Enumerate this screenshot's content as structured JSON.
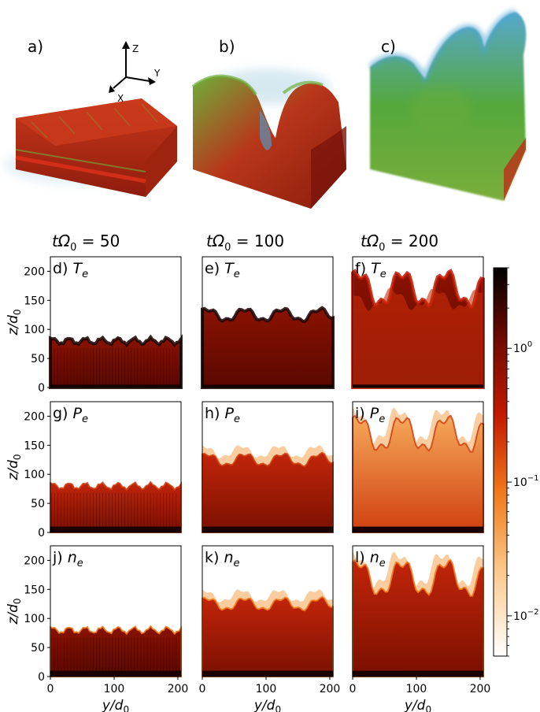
{
  "panel_labels_3d": [
    "a)",
    "b)",
    "c)"
  ],
  "axes_gizmo": {
    "z": "Z",
    "y": "Y",
    "x": "X"
  },
  "time_labels": [
    "tΩ0 = 50",
    "tΩ0 = 100",
    "tΩ0 = 200"
  ],
  "time_prefix": "tΩ",
  "time_sub": "0",
  "time_values": [
    "50",
    "100",
    "200"
  ],
  "colors": {
    "cmap_low": "#ffffff",
    "cmap_mid1": "#f59e3a",
    "cmap_mid2": "#c21a00",
    "cmap_mid3": "#7a0c00",
    "cmap_high": "#000000",
    "render_red": "#c0301a",
    "render_green": "#5aa832",
    "render_blue": "#4aa3d6"
  },
  "chart_data": {
    "type": "heatmap",
    "layout": "3x3 grid",
    "rows": [
      {
        "quantity": "T",
        "sub": "e",
        "labels": [
          "d)",
          "e)",
          "f)"
        ]
      },
      {
        "quantity": "P",
        "sub": "e",
        "labels": [
          "g)",
          "h)",
          "i)"
        ]
      },
      {
        "quantity": "n",
        "sub": "e",
        "labels": [
          "j)",
          "k)",
          "l)"
        ]
      }
    ],
    "columns_time": [
      50,
      100,
      200
    ],
    "front_height_z": [
      80,
      125,
      170
    ],
    "xlabel": "y/d",
    "xlabel_sub": "0",
    "ylabel": "z/d",
    "ylabel_sub": "0",
    "xlim": [
      0,
      205
    ],
    "ylim": [
      0,
      225
    ],
    "xticks": [
      0,
      100,
      200
    ],
    "yticks": [
      0,
      50,
      100,
      150,
      200
    ],
    "colorbar": {
      "scale": "log",
      "ticks": [
        {
          "value": 0.01,
          "base": "10",
          "exp": "−2"
        },
        {
          "value": 0.1,
          "base": "10",
          "exp": "−1"
        },
        {
          "value": 1,
          "base": "10",
          "exp": "0"
        }
      ],
      "range": [
        0.005,
        4
      ]
    }
  }
}
